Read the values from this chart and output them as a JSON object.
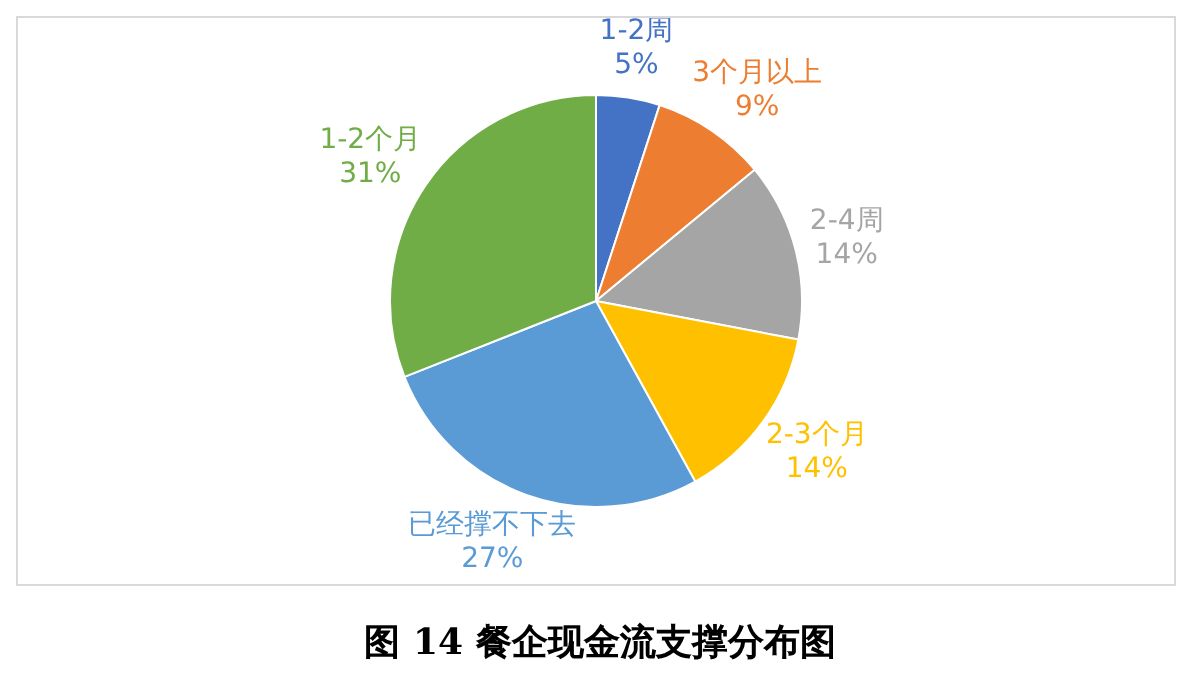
{
  "chart_data": {
    "type": "pie",
    "title": "图 14 餐企现金流支撑分布图",
    "categories": [
      "1-2周",
      "3个月以上",
      "2-4周",
      "2-3个月",
      "已经撑不下去",
      "1-2个月"
    ],
    "values": [
      5,
      9,
      14,
      14,
      27,
      31
    ],
    "value_labels": [
      "5%",
      "9%",
      "14%",
      "14%",
      "27%",
      "31%"
    ],
    "colors": [
      "#4472c4",
      "#ed7d31",
      "#a5a5a5",
      "#ffc000",
      "#5b9bd5",
      "#70ad47"
    ],
    "legend": false
  }
}
